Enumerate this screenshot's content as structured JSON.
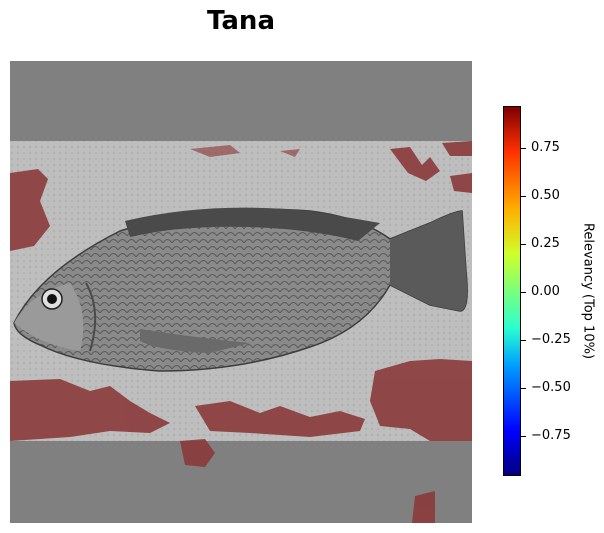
{
  "title": "Tana",
  "image": {
    "description_icon": "fish-photo-icon",
    "background_color": "#808080",
    "overlay_color": "#8b3a3a"
  },
  "colorbar": {
    "label": "Relevancy (Top 10%)",
    "ticks": [
      "0.75",
      "0.50",
      "0.25",
      "0.00",
      "−0.25",
      "−0.50",
      "−0.75"
    ]
  }
}
